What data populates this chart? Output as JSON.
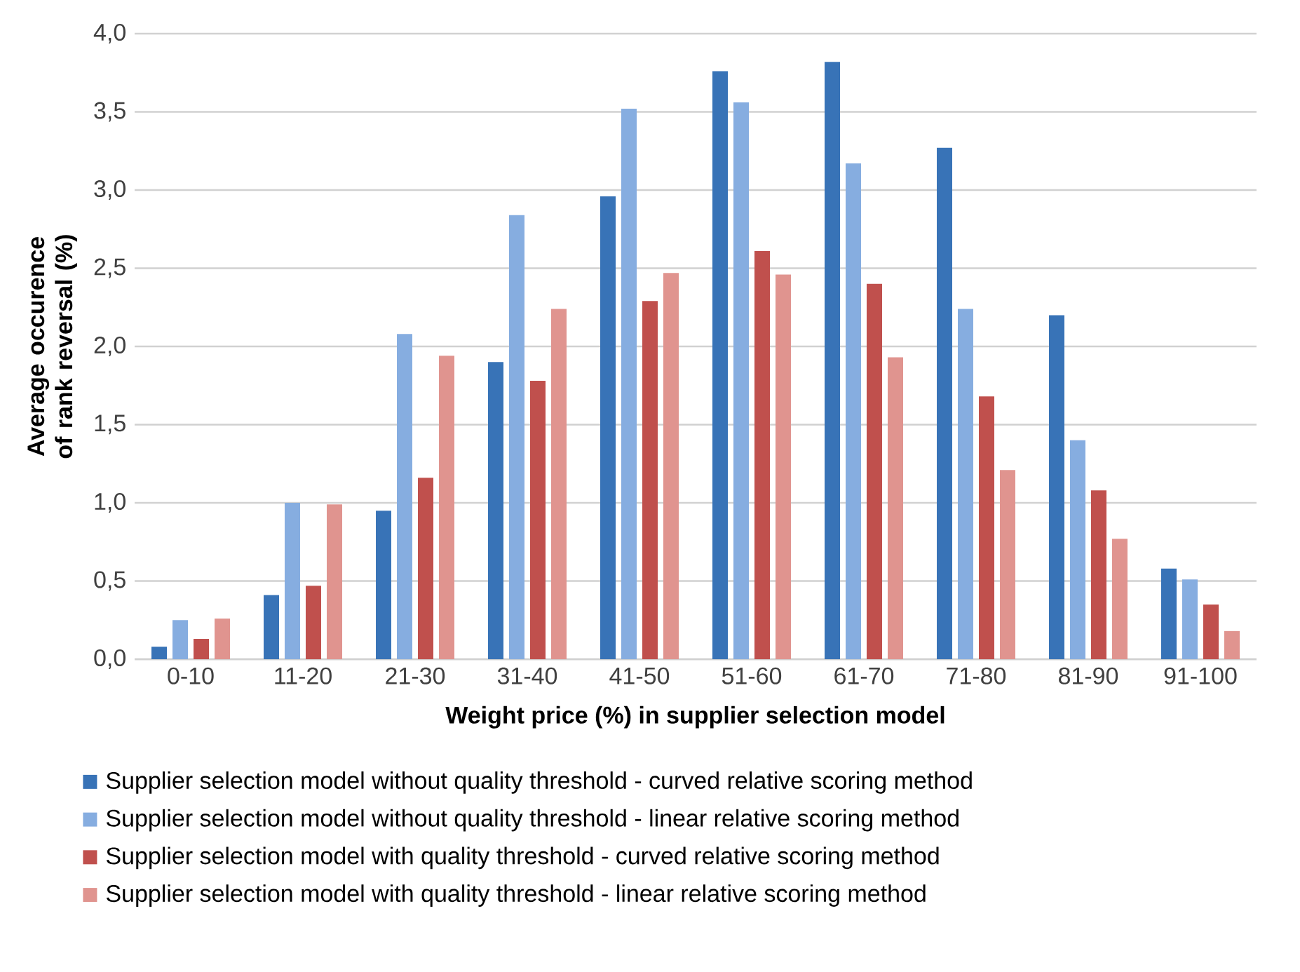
{
  "chart_data": {
    "type": "bar",
    "xlabel": "Weight price (%) in supplier selection model",
    "ylabel": "Average occurence of rank reversal (%)",
    "categories": [
      "0-10",
      "11-20",
      "21-30",
      "31-40",
      "41-50",
      "51-60",
      "61-70",
      "71-80",
      "81-90",
      "91-100"
    ],
    "series": [
      {
        "name": "Supplier selection model without quality threshold - curved relative scoring method",
        "color": "#3873b7",
        "values": [
          0.08,
          0.41,
          0.95,
          1.9,
          2.96,
          3.76,
          3.82,
          3.27,
          2.2,
          0.58
        ]
      },
      {
        "name": "Supplier selection model without quality threshold - linear relative scoring method",
        "color": "#86ade0",
        "values": [
          0.25,
          1.0,
          2.08,
          2.84,
          3.52,
          3.56,
          3.17,
          2.24,
          1.4,
          0.51
        ]
      },
      {
        "name": "Supplier selection model with quality threshold - curved relative scoring method",
        "color": "#c0504d",
        "values": [
          0.13,
          0.47,
          1.16,
          1.78,
          2.29,
          2.61,
          2.4,
          1.68,
          1.08,
          0.35
        ]
      },
      {
        "name": "Supplier selection model with quality threshold - linear relative scoring method",
        "color": "#e0948f",
        "values": [
          0.26,
          0.99,
          1.94,
          2.24,
          2.47,
          2.46,
          1.93,
          1.21,
          0.77,
          0.18
        ]
      }
    ],
    "ylim": [
      0,
      4
    ],
    "yticks": [
      {
        "value": 0,
        "label": "0,0"
      },
      {
        "value": 0.5,
        "label": "0,5"
      },
      {
        "value": 1,
        "label": "1,0"
      },
      {
        "value": 1.5,
        "label": "1,5"
      },
      {
        "value": 2,
        "label": "2,0"
      },
      {
        "value": 2.5,
        "label": "2,5"
      },
      {
        "value": 3,
        "label": "3,0"
      },
      {
        "value": 3.5,
        "label": "3,5"
      },
      {
        "value": 4,
        "label": "4,0"
      }
    ],
    "grid": "y",
    "legend": "bottom"
  }
}
